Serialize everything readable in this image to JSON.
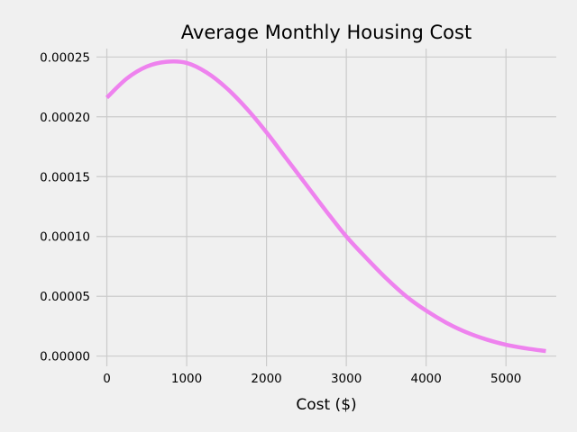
{
  "chart_data": {
    "type": "line",
    "title": "Average Monthly Housing Cost",
    "xlabel": "Cost ($)",
    "ylabel": "",
    "xlim": [
      -130,
      5630
    ],
    "ylim": [
      -8.5e-06,
      0.000257
    ],
    "xticks": [
      0,
      1000,
      2000,
      3000,
      4000,
      5000
    ],
    "yticks": [
      0.0,
      5e-05,
      0.0001,
      0.00015,
      0.0002,
      0.00025
    ],
    "xtick_labels": [
      "0",
      "1000",
      "2000",
      "3000",
      "4000",
      "5000"
    ],
    "ytick_labels": [
      "0.00000",
      "0.00005",
      "0.00010",
      "0.00015",
      "0.00020",
      "0.00025"
    ],
    "grid": true,
    "line_color": "#ee82ee",
    "background_color": "#f0f0f0",
    "series": [
      {
        "x": [
          0,
          250,
          500,
          750,
          1000,
          1250,
          1500,
          1750,
          2000,
          2250,
          2500,
          2750,
          3000,
          3250,
          3500,
          3750,
          4000,
          4250,
          4500,
          4750,
          5000,
          5250,
          5500
        ],
        "y": [
          0.000216,
          0.000232,
          0.000242,
          0.000246,
          0.000245,
          0.000237,
          0.000224,
          0.000207,
          0.000187,
          0.000165,
          0.000143,
          0.000121,
          0.0001,
          8.2e-05,
          6.5e-05,
          5e-05,
          3.8e-05,
          2.8e-05,
          2e-05,
          1.4e-05,
          9.5e-06,
          6.5e-06,
          4.2e-06
        ]
      }
    ]
  }
}
